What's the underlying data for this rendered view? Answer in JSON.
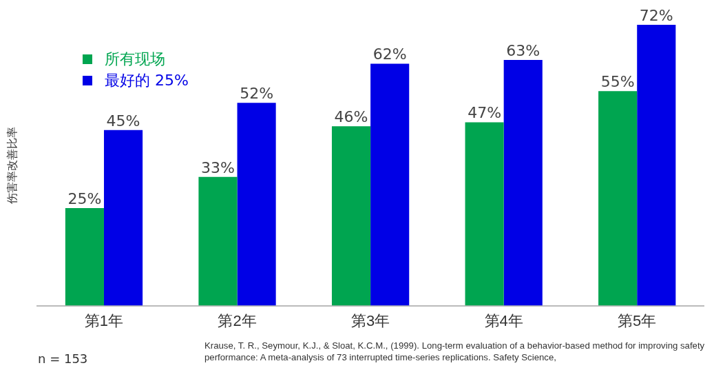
{
  "chart_data": {
    "type": "bar",
    "ylabel": "伤害率改善比率",
    "categories": [
      "第1年",
      "第2年",
      "第3年",
      "第4年",
      "第5年"
    ],
    "series": [
      {
        "name": "所有现场",
        "color": "#00a550",
        "values": [
          25,
          33,
          46,
          47,
          55
        ],
        "value_labels": [
          "25%",
          "33%",
          "46%",
          "47%",
          "55%"
        ]
      },
      {
        "name": "最好的 25%",
        "color": "#0000e6",
        "values": [
          45,
          52,
          62,
          63,
          72
        ],
        "value_labels": [
          "45%",
          "52%",
          "62%",
          "63%",
          "72%"
        ]
      }
    ],
    "legend": "top left",
    "grid": false,
    "annotations": [
      "n = 153",
      "Krause, T. R., Seymour, K.J., & Sloat, K.C.M., (1999). Long-term evaluation of a behavior-based method for improving safety performance: A meta-analysis of 73 interrupted time-series replications. Safety Science,"
    ]
  }
}
